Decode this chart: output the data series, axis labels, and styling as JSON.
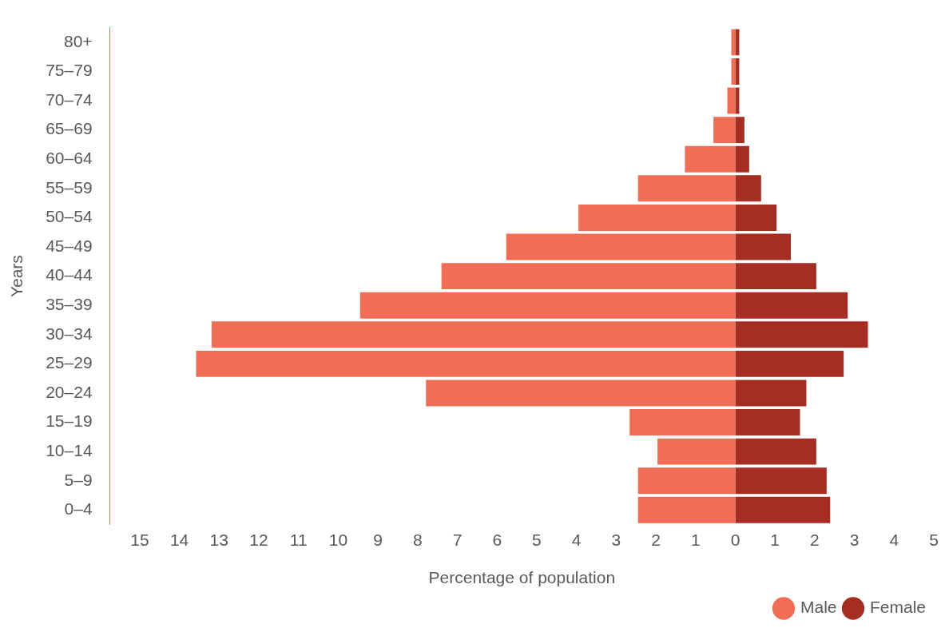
{
  "chart_data": {
    "type": "bar",
    "orientation": "horizontal",
    "stacked": true,
    "xlabel": "Percentage of population",
    "ylabel": "Years",
    "legend": "bottom right",
    "categories": [
      "80+",
      "75–79",
      "70–74",
      "65–69",
      "60–64",
      "55–59",
      "50–54",
      "45–49",
      "40–44",
      "35–39",
      "30–34",
      "25–29",
      "20–24",
      "15–19",
      "10–14",
      "5–9",
      "0–4"
    ],
    "series": [
      {
        "name": "Male",
        "color": "#f06e55",
        "values": [
          -0.1,
          -0.1,
          -0.2,
          -0.55,
          -1.27,
          -2.45,
          -3.95,
          -5.77,
          -7.4,
          -9.45,
          -13.19,
          -13.58,
          -7.79,
          -2.66,
          -1.96,
          -2.45,
          -2.45
        ]
      },
      {
        "name": "Female",
        "color": "#a52d21",
        "values": [
          0.1,
          0.1,
          0.1,
          0.23,
          0.35,
          0.65,
          1.04,
          1.4,
          2.04,
          2.83,
          3.34,
          2.73,
          1.79,
          1.63,
          2.04,
          2.3,
          2.39
        ]
      }
    ],
    "xlim": [
      -15.75,
      5
    ],
    "xticks": [
      {
        "value": -15,
        "label": "15"
      },
      {
        "value": -14,
        "label": "14"
      },
      {
        "value": -13,
        "label": "13"
      },
      {
        "value": -12,
        "label": "12"
      },
      {
        "value": -11,
        "label": "11"
      },
      {
        "value": -10,
        "label": "10"
      },
      {
        "value": -9,
        "label": "9"
      },
      {
        "value": -8,
        "label": "8"
      },
      {
        "value": -7,
        "label": "7"
      },
      {
        "value": -6,
        "label": "6"
      },
      {
        "value": -5,
        "label": "5"
      },
      {
        "value": -4,
        "label": "4"
      },
      {
        "value": -3,
        "label": "3"
      },
      {
        "value": -2,
        "label": "2"
      },
      {
        "value": -1,
        "label": "1"
      },
      0,
      1,
      2,
      3,
      4,
      5
    ]
  }
}
